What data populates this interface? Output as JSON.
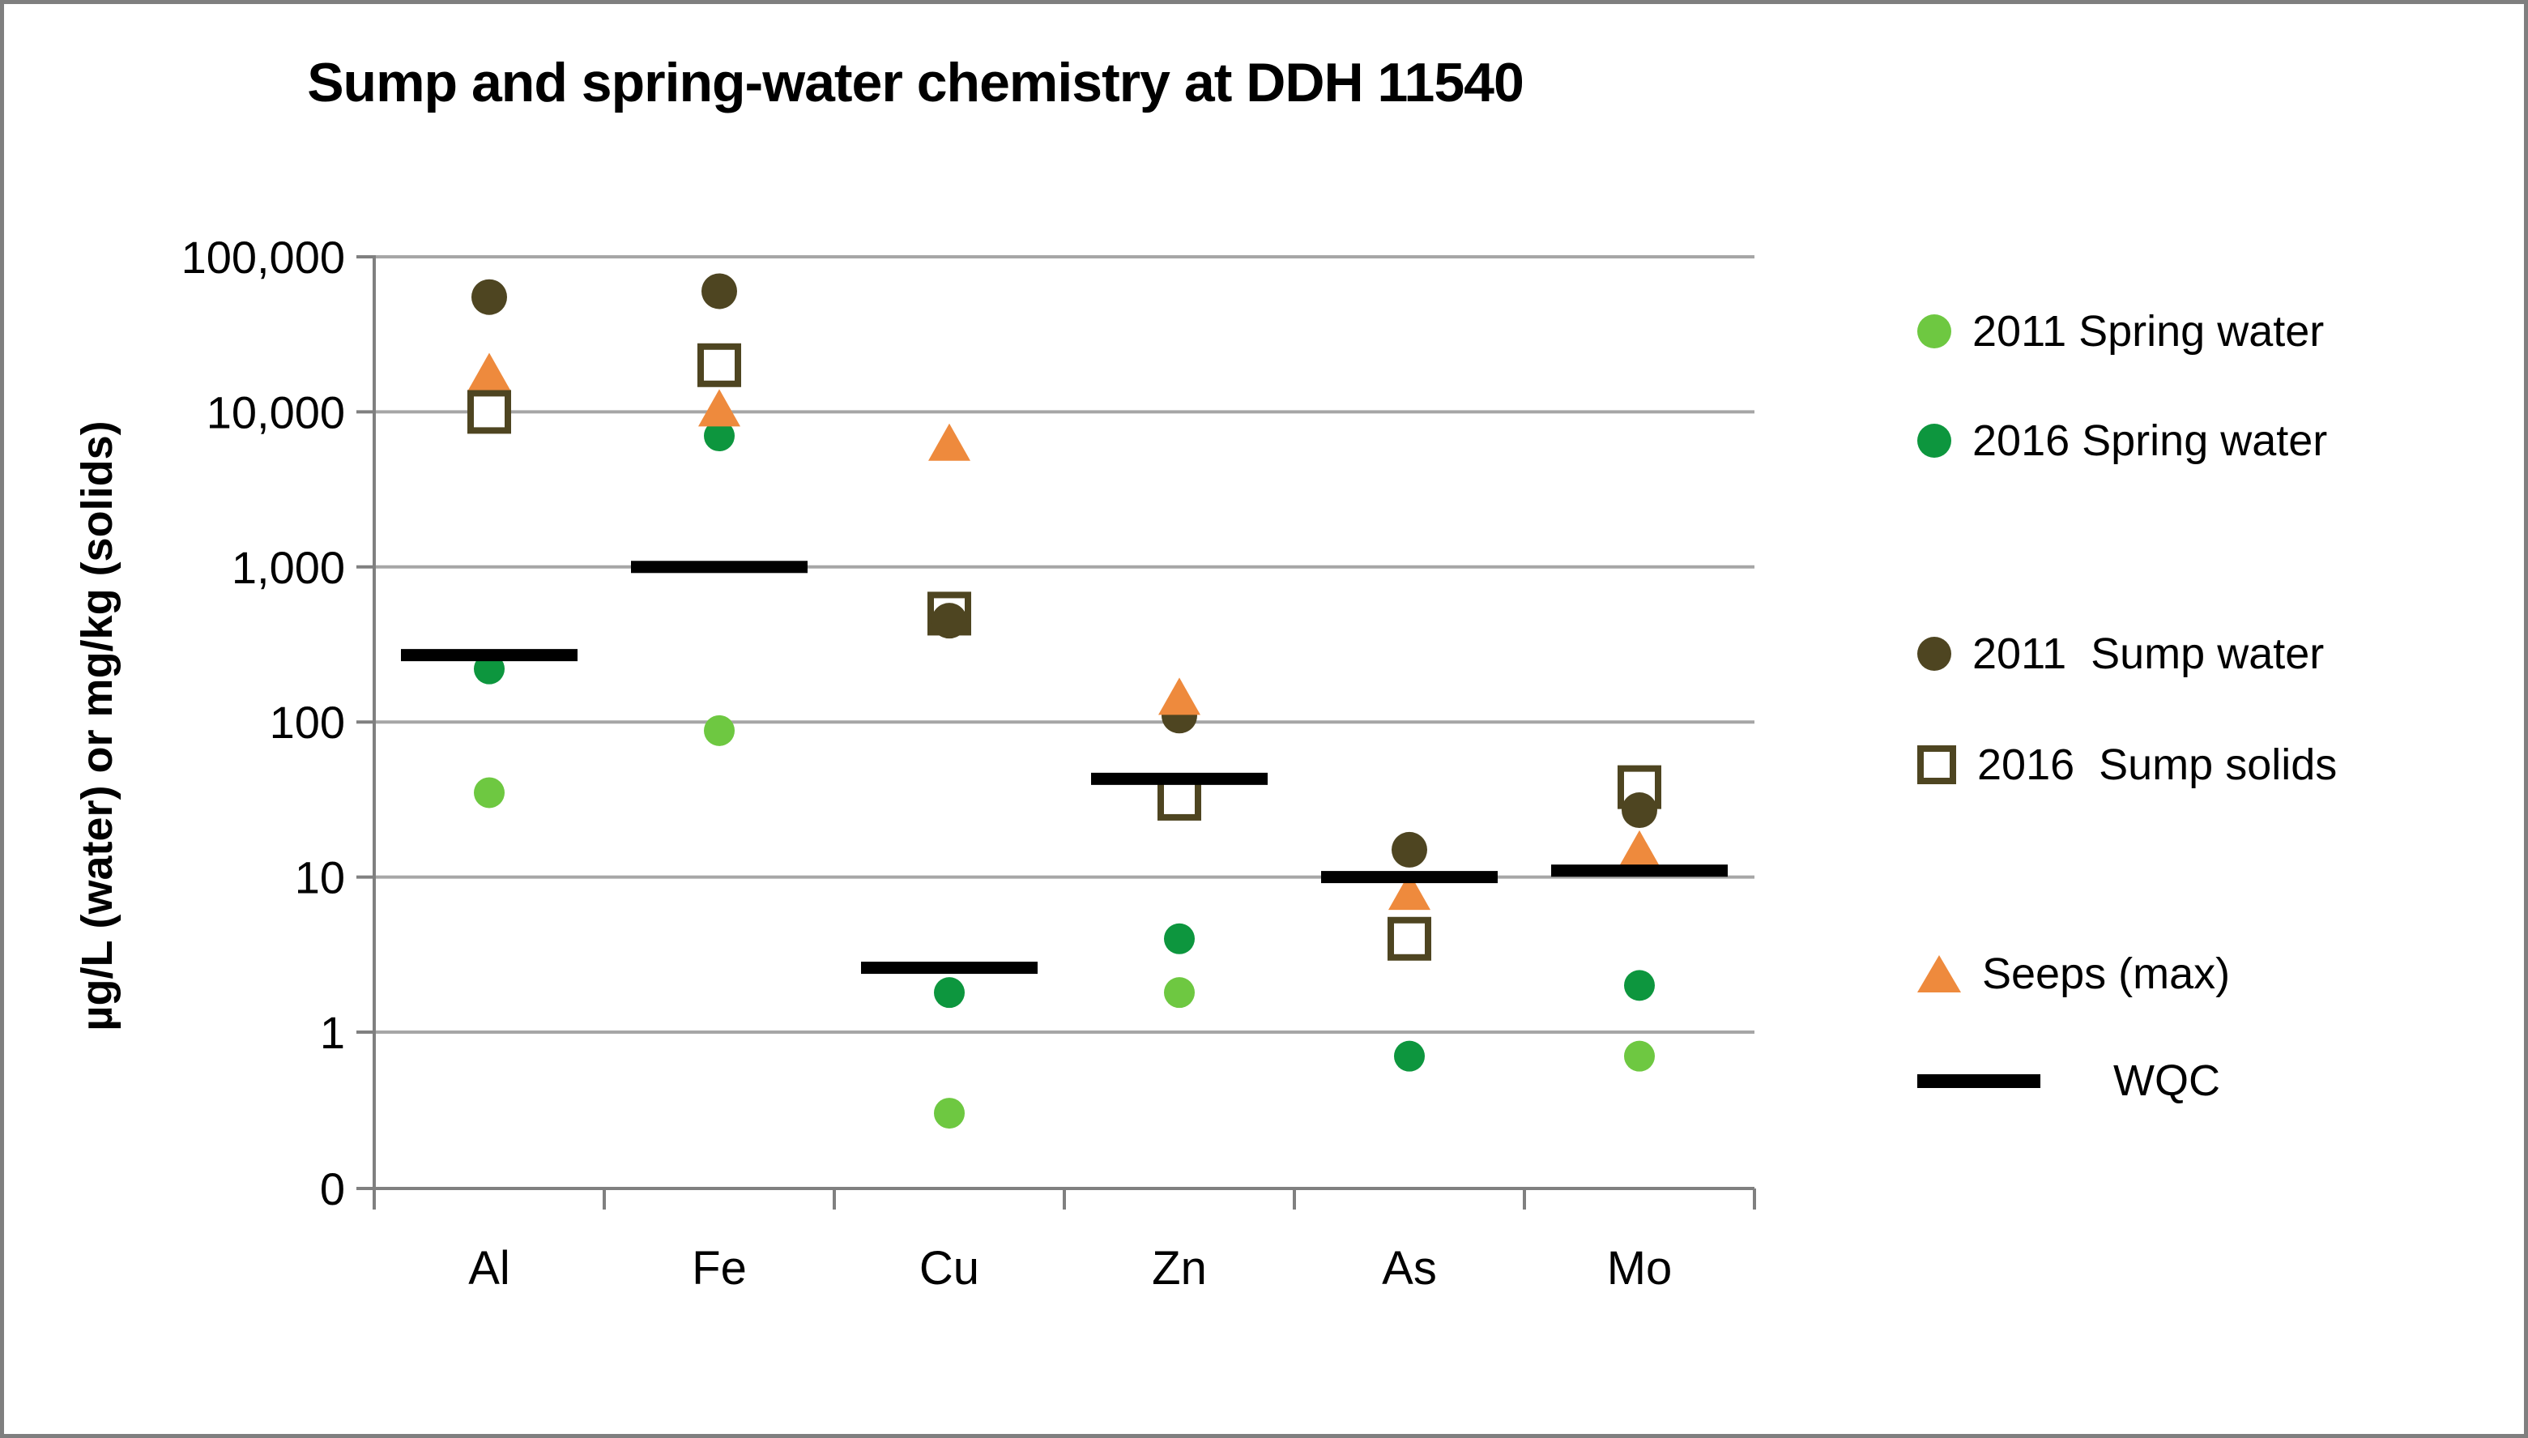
{
  "frame": {
    "border_color": "#7f7f7f",
    "background_color": "#ffffff"
  },
  "chart_data": {
    "type": "scatter",
    "title": "Sump and spring-water chemistry at DDH 11540",
    "xlabel": "",
    "ylabel": "µg/L (water) or mg/kg (solids)",
    "y_scale": "log",
    "grid": "horizontal",
    "legend_position": "right",
    "colors": {
      "gridline": "#a6a6a6",
      "axis": "#808080",
      "light_green": "#6ec841",
      "dark_green": "#0d963e",
      "olive": "#4e4521",
      "orange": "#ee8a3d",
      "wqc_black": "#000000"
    },
    "y_ticks": [
      {
        "label": "100,000",
        "value": 100000
      },
      {
        "label": "10,000",
        "value": 10000
      },
      {
        "label": "1,000",
        "value": 1000
      },
      {
        "label": "100",
        "value": 100
      },
      {
        "label": "10",
        "value": 10
      },
      {
        "label": "1",
        "value": 1
      },
      {
        "label": "0",
        "value": 0
      }
    ],
    "ylim": [
      1,
      100000
    ],
    "categories": [
      "Al",
      "Fe",
      "Cu",
      "Zn",
      "As",
      "Mo"
    ],
    "series": [
      {
        "name": "2011 Spring water",
        "marker": "circle",
        "color": "#6ec841",
        "values": [
          35,
          88,
          0.3,
          1.8,
          null,
          0.7
        ]
      },
      {
        "name": "2016 Spring water",
        "marker": "circle",
        "color": "#0d963e",
        "values": [
          220,
          7000,
          1.8,
          4,
          0.7,
          2
        ]
      },
      {
        "name": "2011  Sump water",
        "marker": "circle",
        "color": "#4e4521",
        "values": [
          55000,
          60000,
          450,
          110,
          15,
          27
        ]
      },
      {
        "name": "2016  Sump solids",
        "marker": "square-open",
        "color": "#4e4521",
        "values": [
          10000,
          20000,
          500,
          32,
          4,
          38
        ]
      },
      {
        "name": "Seeps (max)",
        "marker": "triangle",
        "color": "#ee8a3d",
        "values": [
          18000,
          10500,
          6300,
          145,
          8,
          15
        ]
      },
      {
        "name": "WQC",
        "marker": "hbar",
        "color": "#000000",
        "values": [
          270,
          1000,
          2.6,
          43,
          10,
          11
        ]
      }
    ]
  }
}
